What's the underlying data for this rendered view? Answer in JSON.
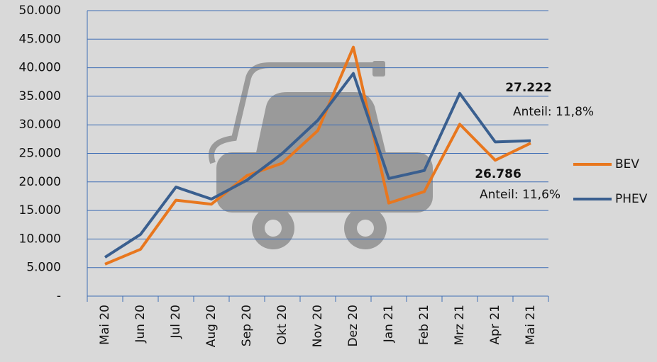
{
  "chart_data": {
    "type": "line",
    "categories": [
      "Mai 20",
      "Jun 20",
      "Jul 20",
      "Aug 20",
      "Sep 20",
      "Okt 20",
      "Nov 20",
      "Dez 20",
      "Jan 21",
      "Feb 21",
      "Mrz 21",
      "Apr 21",
      "Mai 21"
    ],
    "series": [
      {
        "name": "BEV",
        "color": "#e8771e",
        "values": [
          5600,
          8200,
          16800,
          16100,
          21100,
          23300,
          29000,
          43600,
          16300,
          18300,
          30100,
          23800,
          26786
        ],
        "value_labels": [
          null,
          null,
          null,
          null,
          null,
          null,
          null,
          null,
          null,
          null,
          null,
          null,
          "26.786"
        ],
        "share_label": "Anteil: 11,6%"
      },
      {
        "name": "PHEV",
        "color": "#3a5f8f",
        "values": [
          6800,
          10800,
          19100,
          17000,
          20300,
          25000,
          30800,
          39000,
          20600,
          22000,
          35500,
          27000,
          27222
        ],
        "value_labels": [
          null,
          null,
          null,
          null,
          null,
          null,
          null,
          null,
          null,
          null,
          null,
          null,
          "27.222"
        ],
        "share_label": "Anteil: 11,8%"
      }
    ],
    "ylim": [
      0,
      50000
    ],
    "yticks": [
      {
        "value": 0,
        "label": "-"
      },
      {
        "value": 5000,
        "label": "5.000"
      },
      {
        "value": 10000,
        "label": "10.000"
      },
      {
        "value": 15000,
        "label": "15.000"
      },
      {
        "value": 20000,
        "label": "20.000"
      },
      {
        "value": 25000,
        "label": "25.000"
      },
      {
        "value": 30000,
        "label": "30.000"
      },
      {
        "value": 35000,
        "label": "35.000"
      },
      {
        "value": 40000,
        "label": "40.000"
      },
      {
        "value": 45000,
        "label": "45.000"
      },
      {
        "value": 50000,
        "label": "50.000"
      }
    ],
    "grid": true
  }
}
